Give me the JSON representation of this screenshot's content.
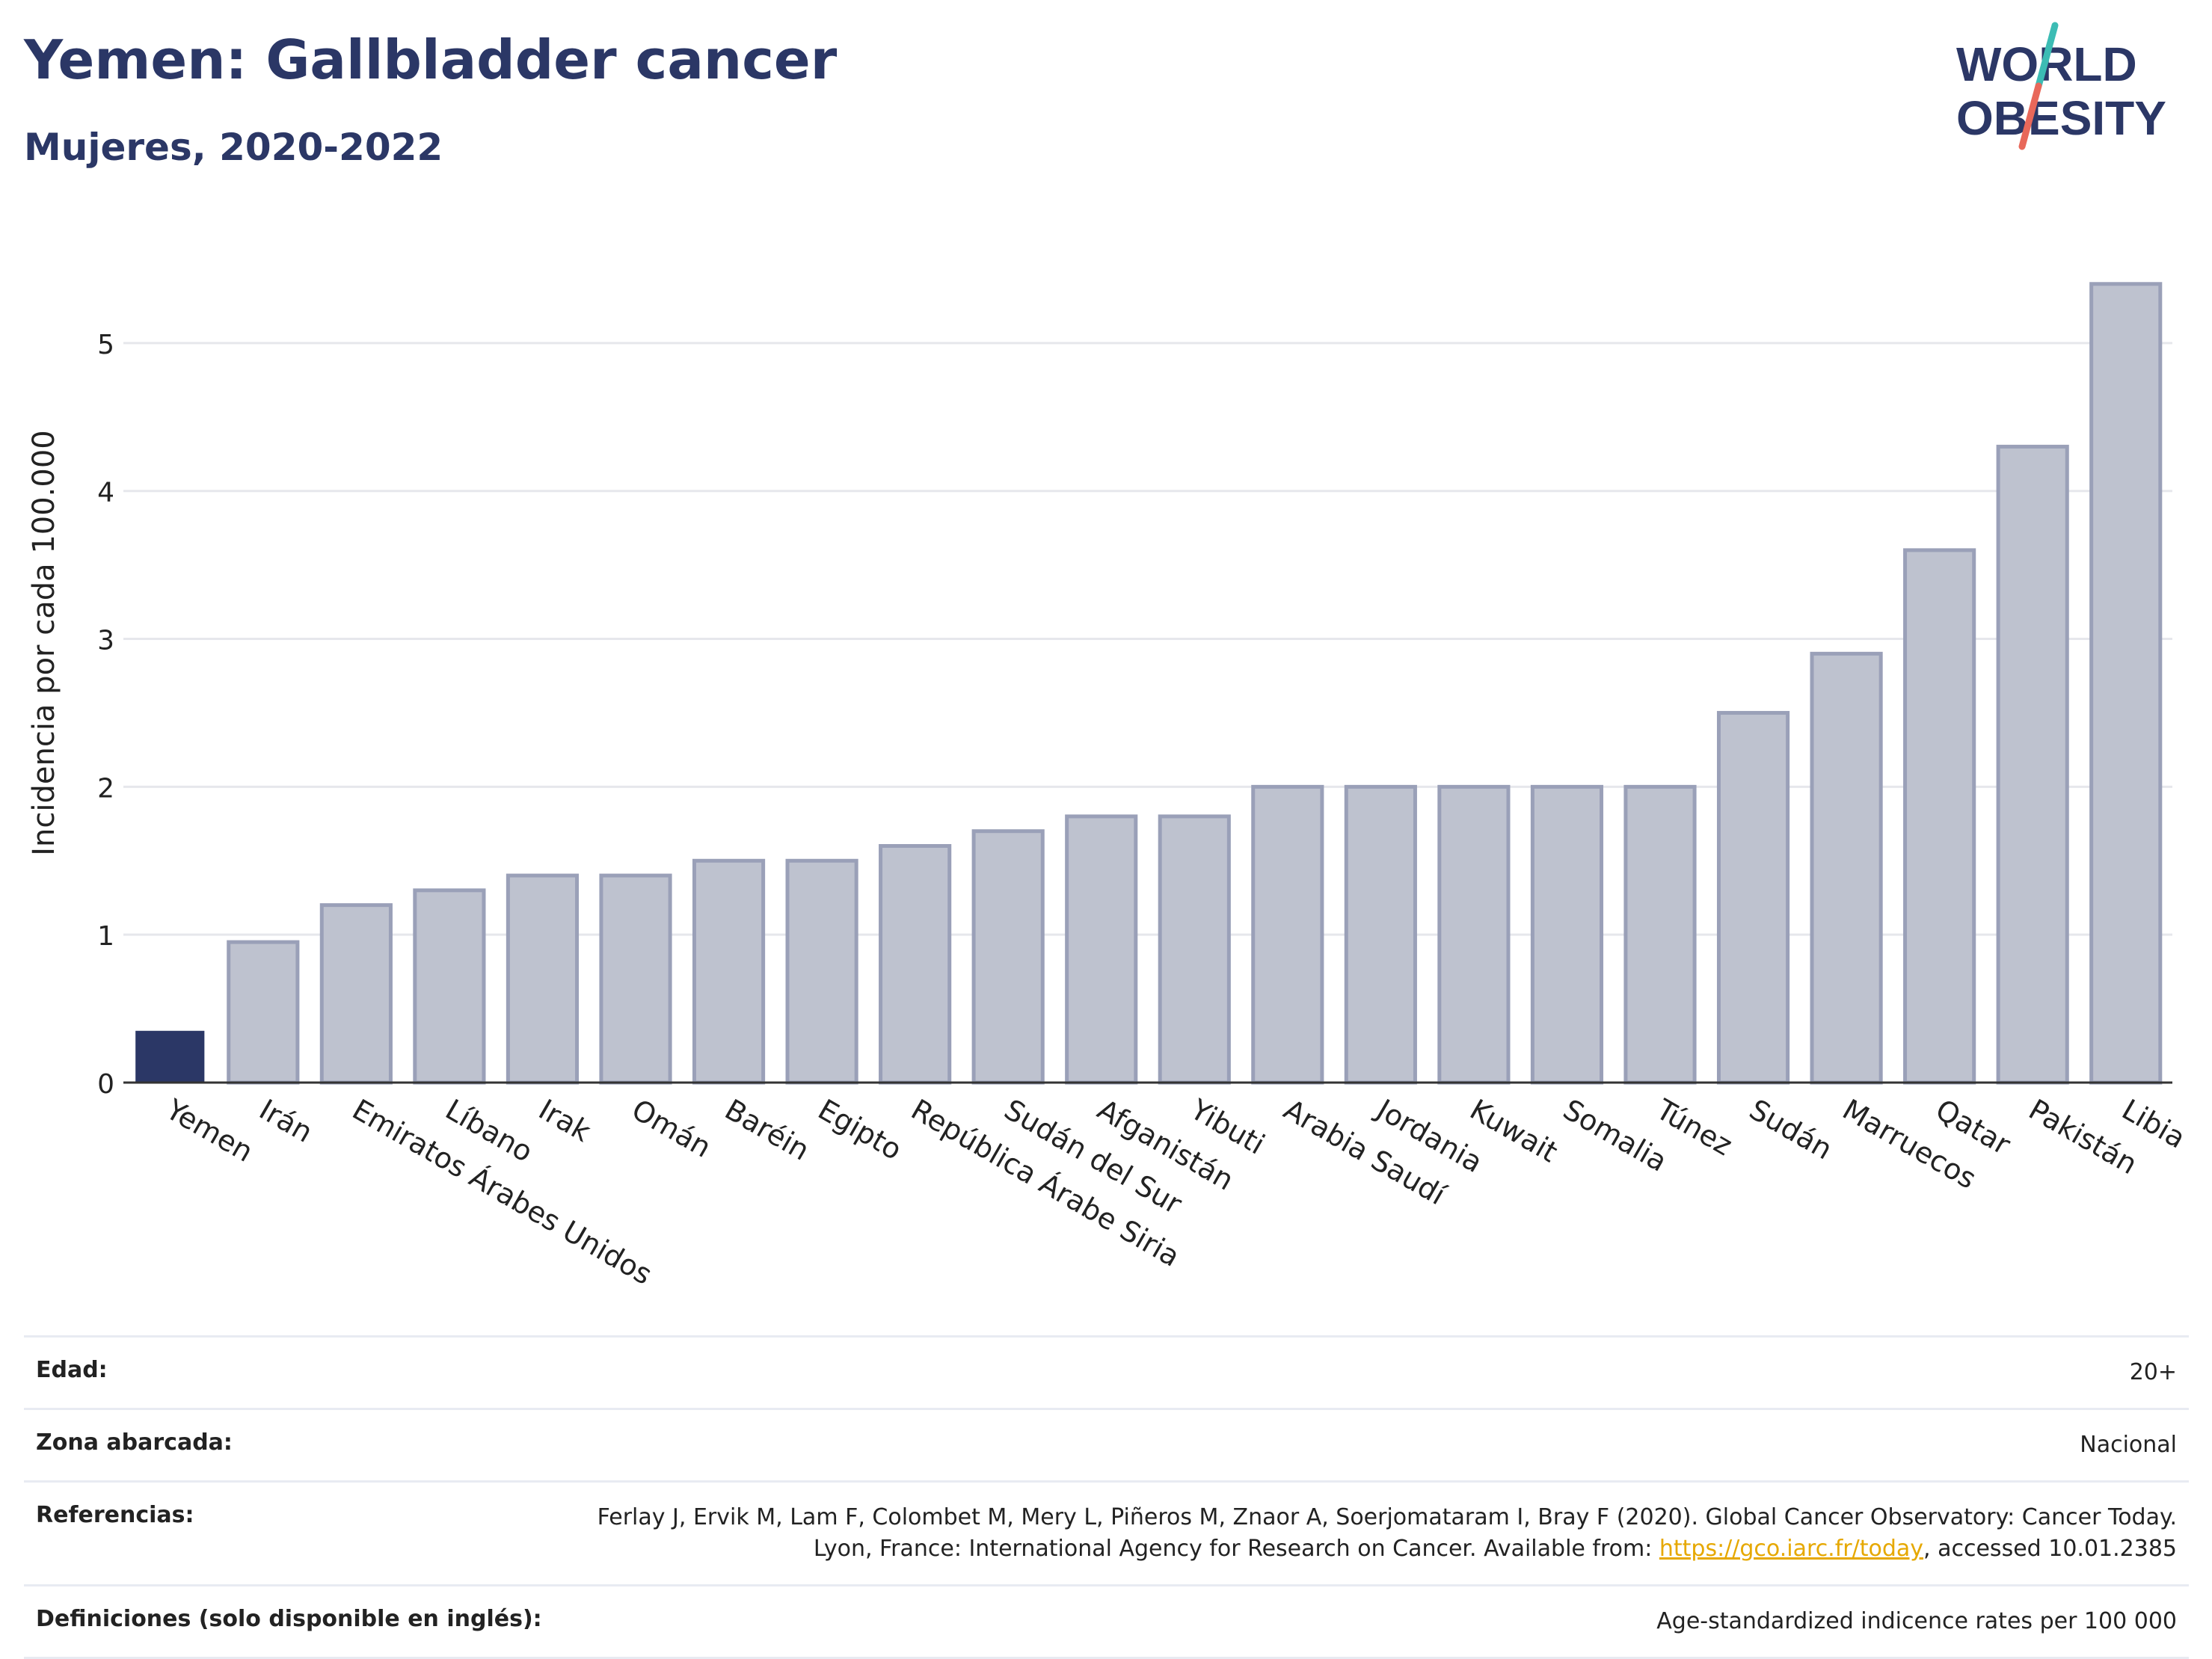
{
  "header": {
    "title": "Yemen: Gallbladder cancer",
    "subtitle": "Mujeres, 2020-2022"
  },
  "logo": {
    "line1": "WORLD",
    "line2": "OBESITY",
    "accent_teal": "#3cbcb4",
    "accent_red": "#e8685a"
  },
  "colors": {
    "highlight": "#2b3766",
    "bar": "#bec2cf",
    "bar_border": "#9aa0b8",
    "title": "#2b3766"
  },
  "chart_data": {
    "type": "bar",
    "categories": [
      "Yemen",
      "Irán",
      "Emiratos Árabes Unidos",
      "Líbano",
      "Irak",
      "Omán",
      "Baréin",
      "Egipto",
      "República Árabe Siria",
      "Sudán del Sur",
      "Afganistán",
      "Yibuti",
      "Arabia Saudí",
      "Jordania",
      "Kuwait",
      "Somalia",
      "Túnez",
      "Sudán",
      "Marruecos",
      "Qatar",
      "Pakistán",
      "Libia"
    ],
    "values": [
      0.35,
      0.95,
      1.2,
      1.3,
      1.4,
      1.4,
      1.5,
      1.5,
      1.6,
      1.7,
      1.8,
      1.8,
      2.0,
      2.0,
      2.0,
      2.0,
      2.0,
      2.5,
      2.9,
      3.6,
      4.3,
      5.4
    ],
    "highlight_category": "Yemen",
    "ylabel": "Incidencia por cada 100.000",
    "xlabel": "",
    "ylim": [
      0,
      5.5
    ],
    "yticks": [
      0,
      1,
      2,
      3,
      4,
      5
    ],
    "grid": true
  },
  "meta": {
    "rows": [
      {
        "label": "Edad:",
        "value": "20+"
      },
      {
        "label": "Zona abarcada:",
        "value": "Nacional"
      },
      {
        "label": "Referencias:",
        "value_before": "Ferlay J, Ervik M, Lam F, Colombet M, Mery L, Piñeros M, Znaor A, Soerjomataram I, Bray F (2020). Global Cancer Observatory: Cancer Today. Lyon, France: International Agency for Research on Cancer. Available from: ",
        "link": "https://gco.iarc.fr/today",
        "value_after": ", accessed 10.01.2385"
      },
      {
        "label": "Definiciones (solo disponible en inglés):",
        "value": "Age-standardized indicence rates per 100 000"
      }
    ]
  }
}
